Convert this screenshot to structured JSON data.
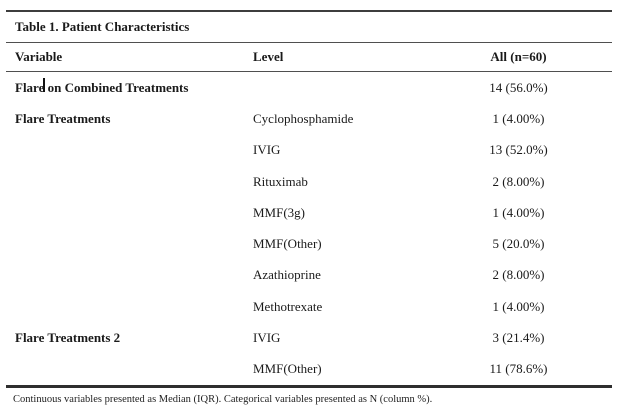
{
  "table": {
    "title": "Table 1. Patient Characteristics",
    "columns": [
      "Variable",
      "Level",
      "All (n=60)"
    ],
    "rows": [
      {
        "variable": "Flare on Combined Treatments",
        "level": "",
        "value": "14 (56.0%)"
      },
      {
        "variable": "Flare Treatments",
        "level": "Cyclophosphamide",
        "value": "1 (4.00%)"
      },
      {
        "variable": "",
        "level": "IVIG",
        "value": "13 (52.0%)"
      },
      {
        "variable": "",
        "level": "Rituximab",
        "value": "2 (8.00%)"
      },
      {
        "variable": "",
        "level": "MMF(3g)",
        "value": "1 (4.00%)"
      },
      {
        "variable": "",
        "level": "MMF(Other)",
        "value": "5 (20.0%)"
      },
      {
        "variable": "",
        "level": "Azathioprine",
        "value": "2 (8.00%)"
      },
      {
        "variable": "",
        "level": "Methotrexate",
        "value": "1 (4.00%)"
      },
      {
        "variable": "Flare Treatments 2",
        "level": "IVIG",
        "value": "3 (21.4%)"
      },
      {
        "variable": "",
        "level": "MMF(Other)",
        "value": "11 (78.6%)"
      }
    ],
    "footnote": "Continuous variables presented as Median (IQR). Categorical variables presented as N (column %).",
    "colors": {
      "rule_top": "#3d3d3d",
      "rule_inner": "#4f4f4f",
      "rule_bottom": "#2e2e2e",
      "text": "#1a1a1a"
    }
  }
}
